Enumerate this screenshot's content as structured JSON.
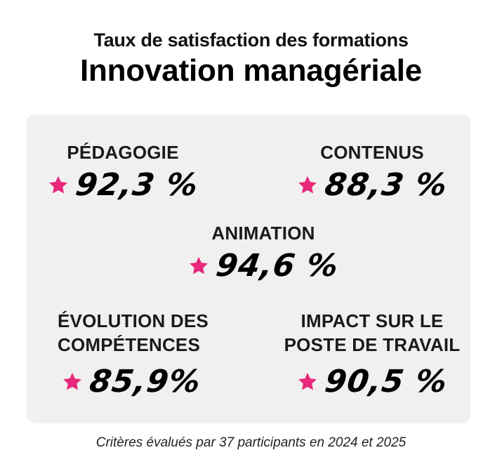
{
  "header": {
    "subtitle": "Taux de satisfaction des formations",
    "title": "Innovation managériale"
  },
  "metrics": [
    {
      "label": "PÉDAGOGIE",
      "value": "92,3 %"
    },
    {
      "label": "CONTENUS",
      "value": "88,3 %"
    },
    {
      "label": "ANIMATION",
      "value": "94,6 %"
    },
    {
      "label_line1": "ÉVOLUTION DES",
      "label_line2": "COMPÉTENCES",
      "value": "85,9%"
    },
    {
      "label_line1": "IMPACT SUR LE",
      "label_line2": "POSTE DE TRAVAIL",
      "value": "90,5 %"
    }
  ],
  "footer": {
    "note": "Critères évalués par 37 participants en 2024 et 2025"
  },
  "colors": {
    "star": "#e8287a",
    "panel": "#f0f0f0"
  },
  "icons": {
    "rating": "star-icon"
  }
}
